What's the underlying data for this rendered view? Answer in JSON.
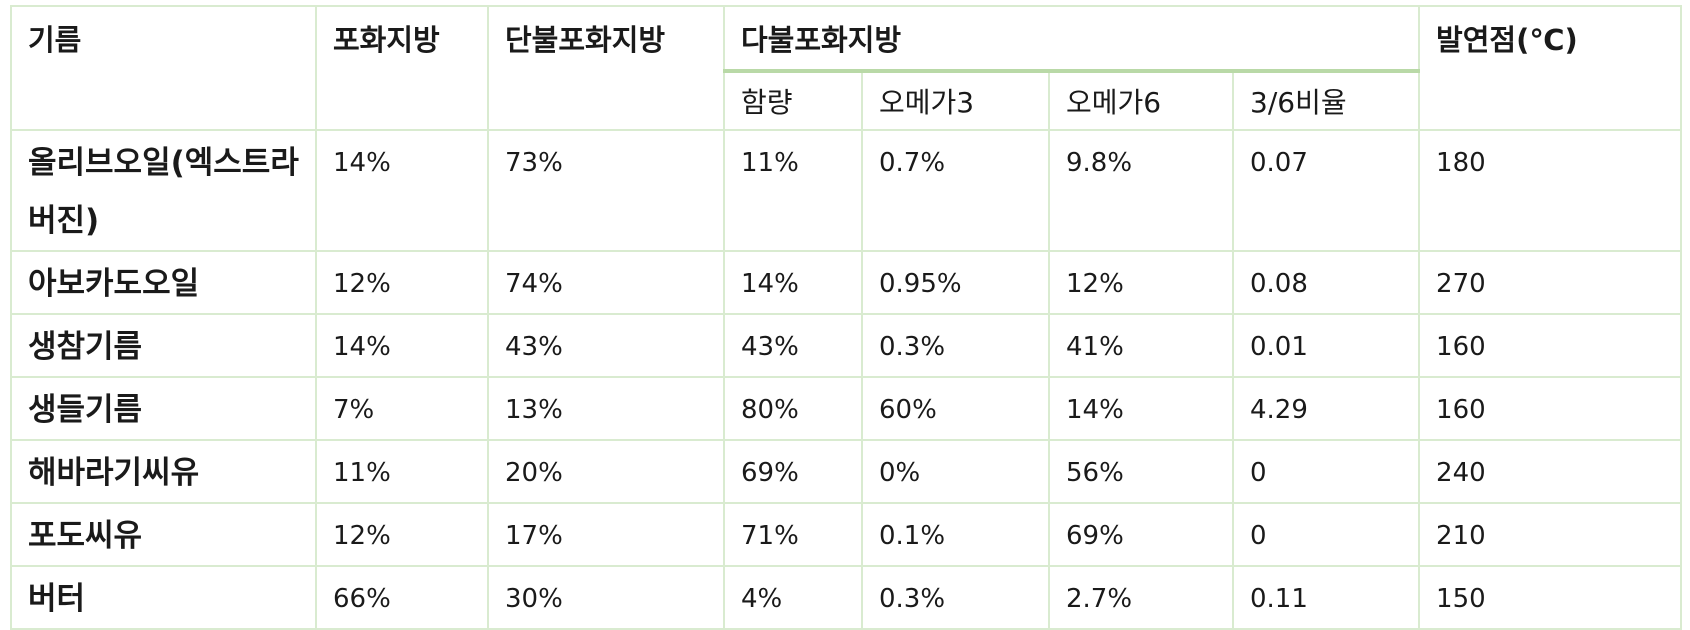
{
  "headers": {
    "oil": "기름",
    "saturated": "포화지방",
    "monounsaturated": "단불포화지방",
    "polyunsaturated": "다불포화지방",
    "smoke_point": "발연점(℃)",
    "sub": {
      "content": "함량",
      "omega3": "오메가3",
      "omega6": "오메가6",
      "ratio": "3/6비율"
    }
  },
  "rows": [
    {
      "name": "올리브오일(엑스트라버진)",
      "saturated": "14%",
      "mono": "73%",
      "poly": "11%",
      "omega3": "0.7%",
      "omega6": "9.8%",
      "ratio": "0.07",
      "smoke": "180"
    },
    {
      "name": "아보카도오일",
      "saturated": "12%",
      "mono": "74%",
      "poly": "14%",
      "omega3": "0.95%",
      "omega6": "12%",
      "ratio": "0.08",
      "smoke": "270"
    },
    {
      "name": "생참기름",
      "saturated": "14%",
      "mono": "43%",
      "poly": "43%",
      "omega3": "0.3%",
      "omega6": "41%",
      "ratio": "0.01",
      "smoke": "160"
    },
    {
      "name": "생들기름",
      "saturated": "7%",
      "mono": "13%",
      "poly": "80%",
      "omega3": "60%",
      "omega6": "14%",
      "ratio": "4.29",
      "smoke": "160"
    },
    {
      "name": "해바라기씨유",
      "saturated": "11%",
      "mono": "20%",
      "poly": "69%",
      "omega3": "0%",
      "omega6": "56%",
      "ratio": "0",
      "smoke": "240"
    },
    {
      "name": "포도씨유",
      "saturated": "12%",
      "mono": "17%",
      "poly": "71%",
      "omega3": "0.1%",
      "omega6": "69%",
      "ratio": "0",
      "smoke": "210"
    },
    {
      "name": "버터",
      "saturated": "66%",
      "mono": "30%",
      "poly": "4%",
      "omega3": "0.3%",
      "omega6": "2.7%",
      "ratio": "0.11",
      "smoke": "150"
    }
  ]
}
